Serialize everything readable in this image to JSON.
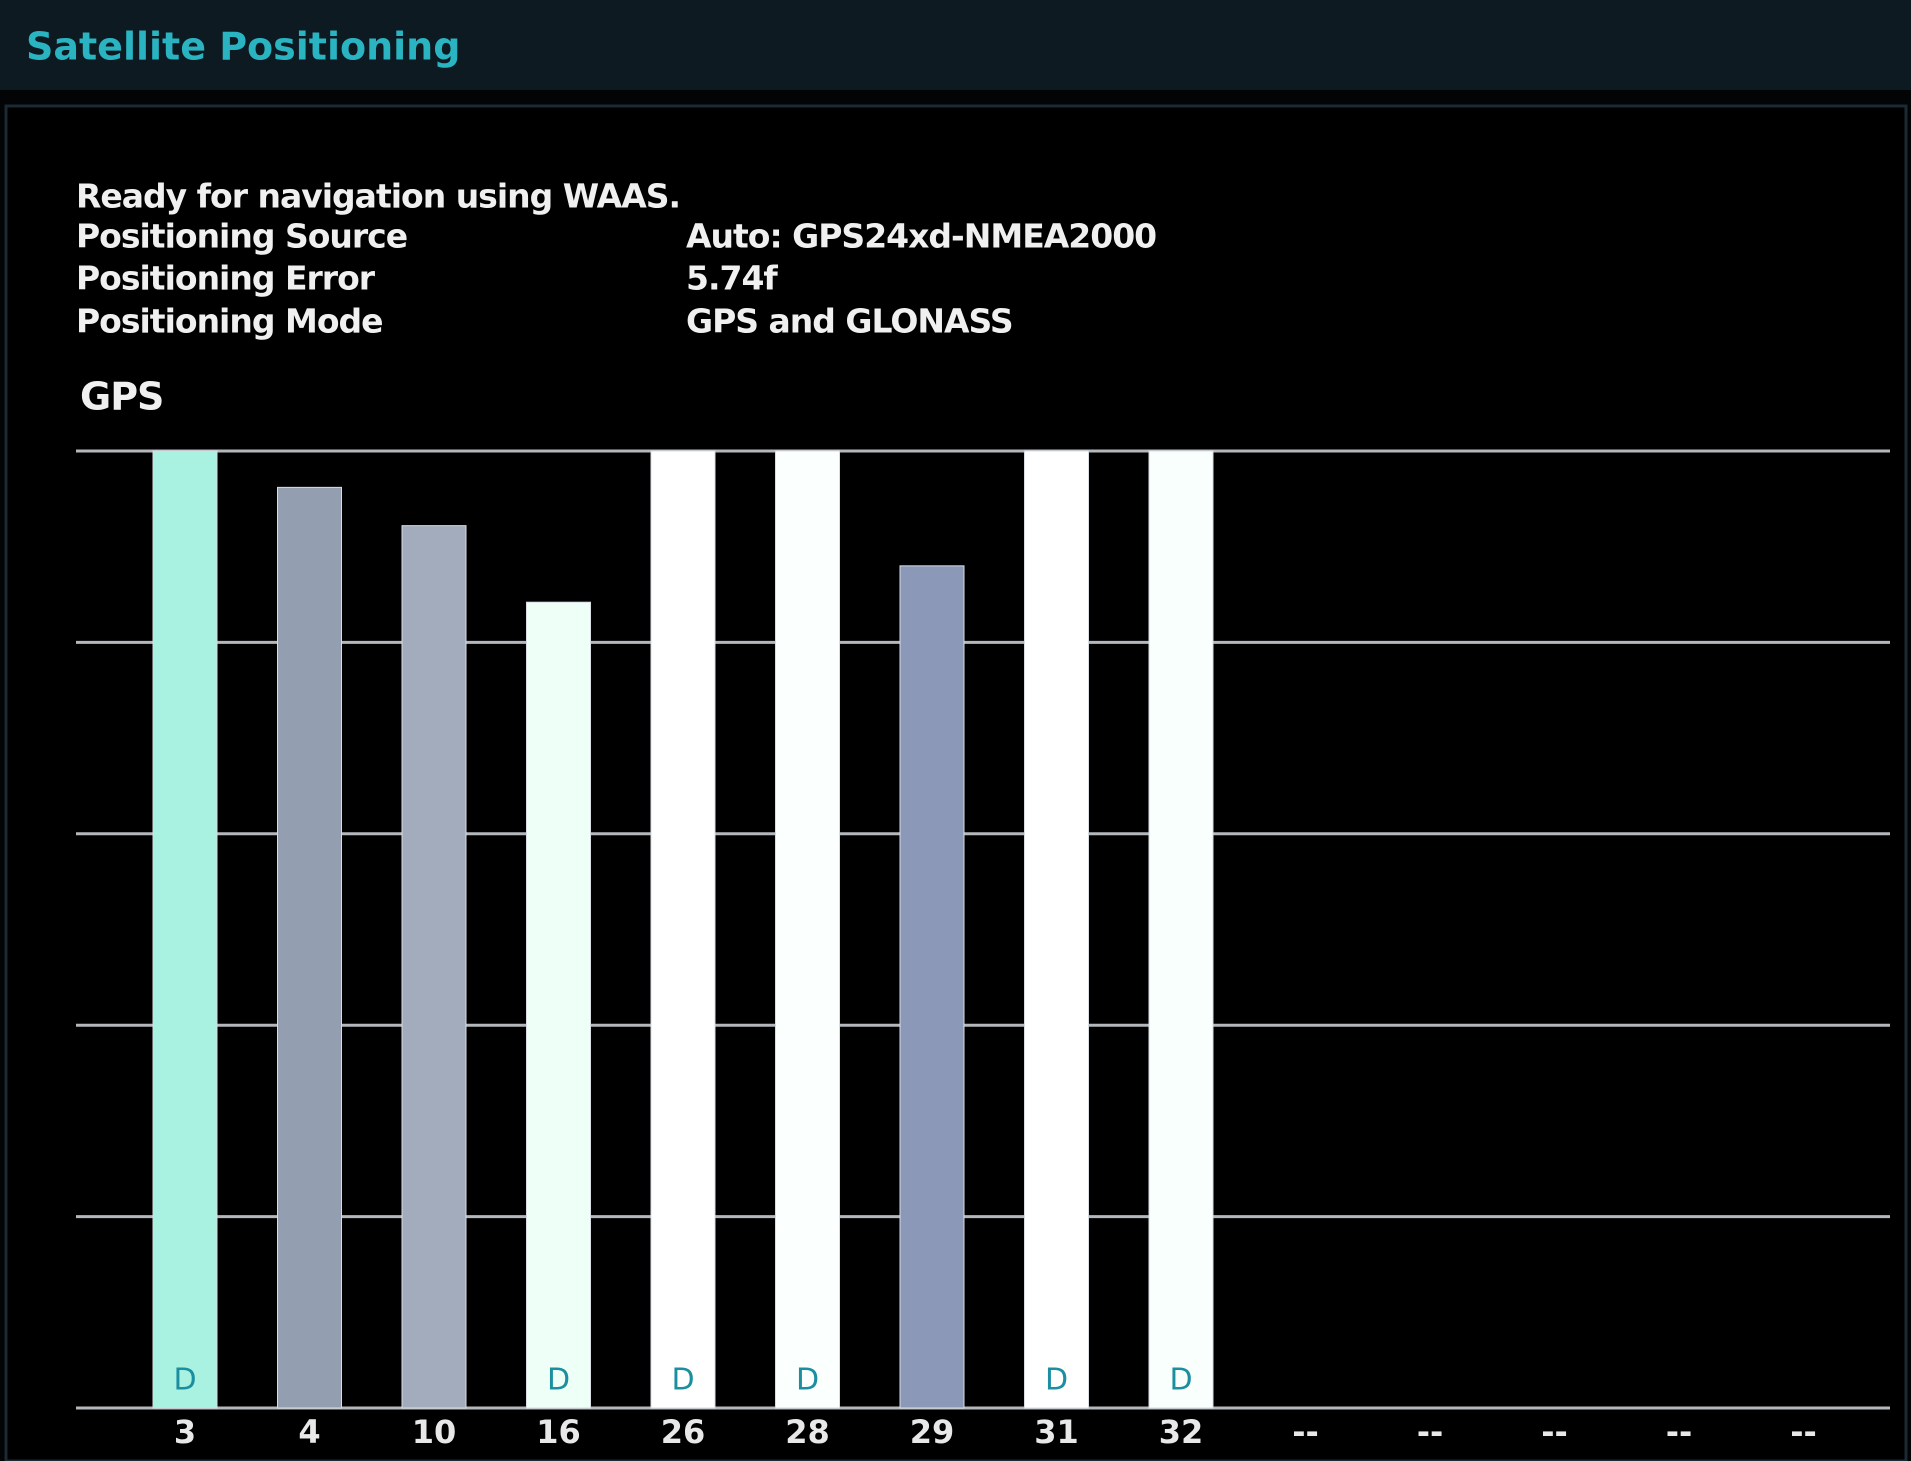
{
  "header": {
    "title": "Satellite Positioning"
  },
  "status": "Ready for navigation using WAAS.",
  "fields": [
    {
      "label": "Positioning Source",
      "value": "Auto: GPS24xd-NMEA2000"
    },
    {
      "label": "Positioning Error",
      "value": "5.74f"
    },
    {
      "label": "Positioning Mode",
      "value": "GPS and GLONASS"
    }
  ],
  "chart_data": {
    "type": "bar",
    "title": "GPS",
    "categories": [
      "3",
      "4",
      "10",
      "16",
      "26",
      "28",
      "29",
      "31",
      "32",
      "--",
      "--",
      "--",
      "--",
      "--"
    ],
    "values": [
      5,
      4.81,
      4.61,
      4.21,
      5,
      5,
      4.4,
      5,
      5,
      null,
      null,
      null,
      null,
      null
    ],
    "colors": [
      "#a9f2e2",
      "#939eb0",
      "#a3acbc",
      "#eefff8",
      "#ffffff",
      "#fbfffe",
      "#8b98b8",
      "#ffffff",
      "#f8fffd",
      null,
      null,
      null,
      null,
      null
    ],
    "flags": [
      "D",
      null,
      null,
      "D",
      "D",
      "D",
      null,
      "D",
      "D",
      null,
      null,
      null,
      null,
      null
    ],
    "ylim": [
      0,
      5
    ],
    "yticks": [
      0,
      1,
      2,
      3,
      4,
      5
    ],
    "grid": true
  }
}
